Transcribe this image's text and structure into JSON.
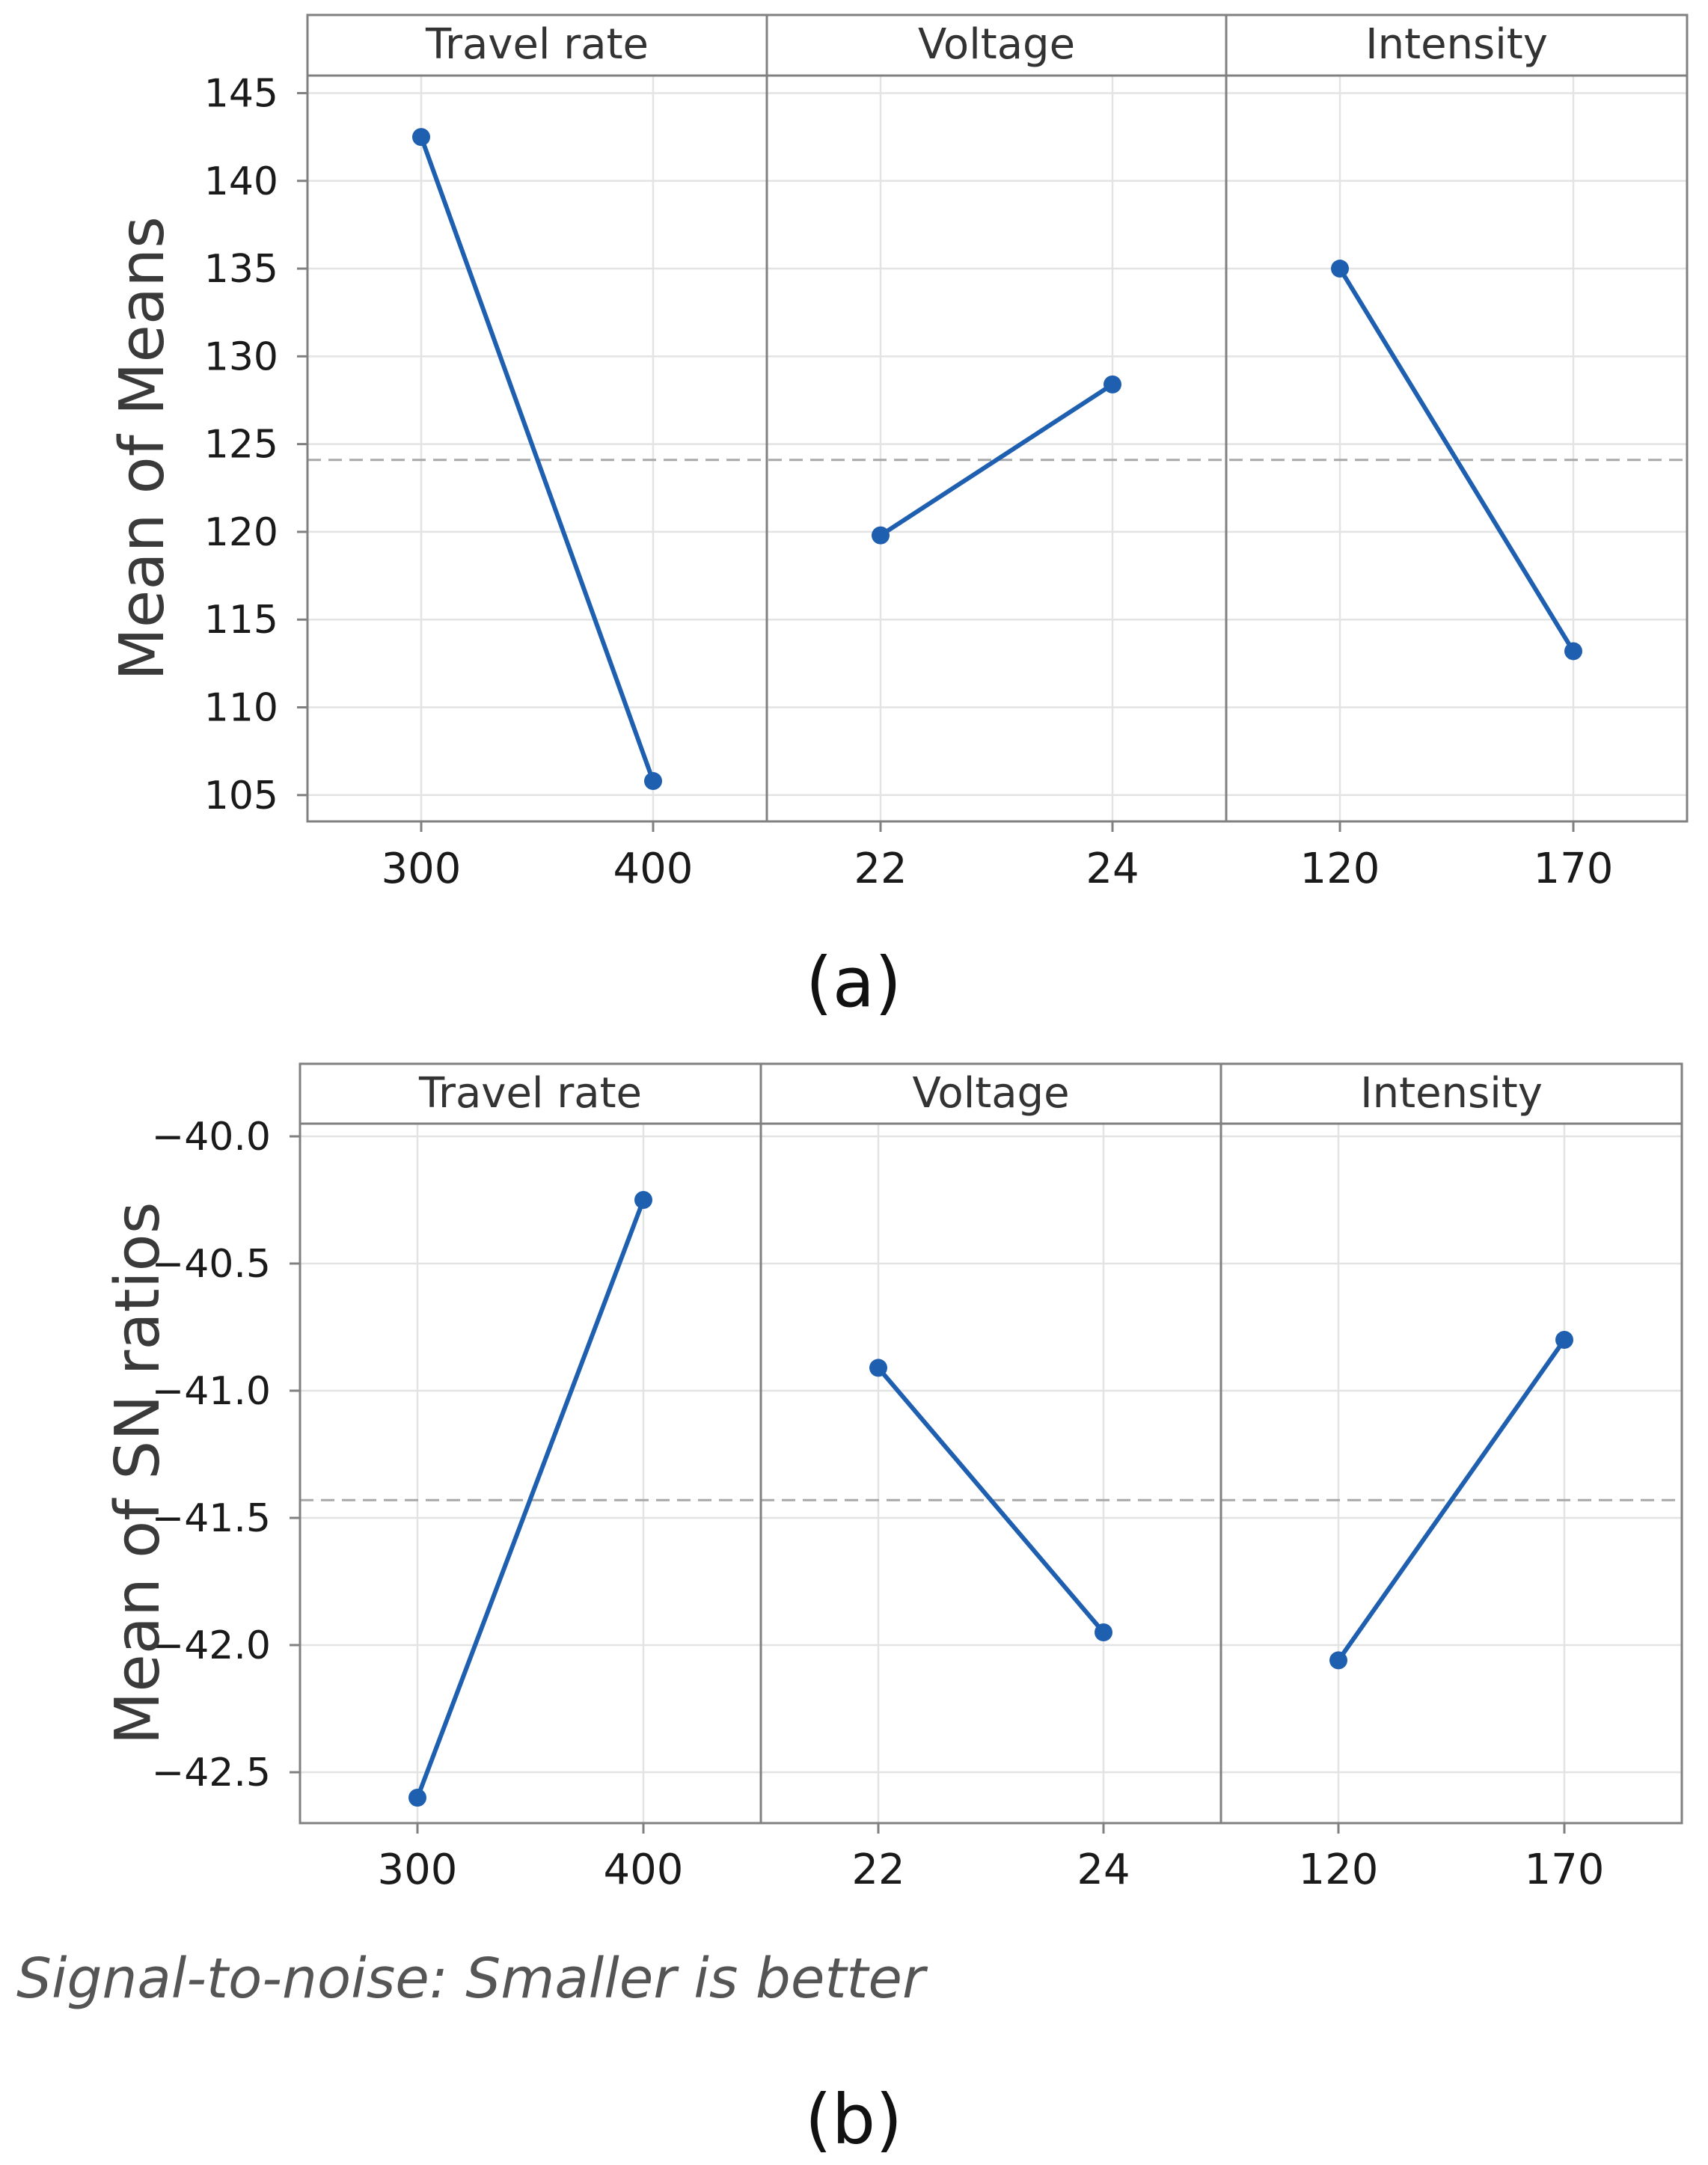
{
  "chart_data": [
    {
      "type": "line",
      "panel_label": "(a)",
      "ylabel": "Mean of Means",
      "ylim": [
        103.5,
        146
      ],
      "yticks": [
        105,
        110,
        115,
        120,
        125,
        130,
        135,
        140,
        145
      ],
      "ytick_labels": [
        "105",
        "110",
        "115",
        "120",
        "125",
        "130",
        "135",
        "140",
        "145"
      ],
      "reference_line": 124.1,
      "grid": true,
      "footnote": "",
      "panels": [
        {
          "title": "Travel rate",
          "categories": [
            "300",
            "400"
          ],
          "values": [
            142.5,
            105.8
          ]
        },
        {
          "title": "Voltage",
          "categories": [
            "22",
            "24"
          ],
          "values": [
            119.8,
            128.4
          ]
        },
        {
          "title": "Intensity",
          "categories": [
            "120",
            "170"
          ],
          "values": [
            135.0,
            113.2
          ]
        }
      ]
    },
    {
      "type": "line",
      "panel_label": "(b)",
      "ylabel": "Mean of SN ratios",
      "ylim": [
        -42.7,
        -39.95
      ],
      "yticks": [
        -42.5,
        -42.0,
        -41.5,
        -41.0,
        -40.5,
        -40.0
      ],
      "ytick_labels": [
        "−42.5",
        "−42.0",
        "−41.5",
        "−41.0",
        "−40.5",
        "−40.0"
      ],
      "reference_line": -41.43,
      "grid": true,
      "footnote": "Signal-to-noise: Smaller is better",
      "panels": [
        {
          "title": "Travel rate",
          "categories": [
            "300",
            "400"
          ],
          "values": [
            -42.6,
            -40.25
          ]
        },
        {
          "title": "Voltage",
          "categories": [
            "22",
            "24"
          ],
          "values": [
            -40.91,
            -41.95
          ]
        },
        {
          "title": "Intensity",
          "categories": [
            "120",
            "170"
          ],
          "values": [
            -42.06,
            -40.8
          ]
        }
      ]
    }
  ],
  "colors": {
    "series": "#1f5fb0",
    "grid": "#e3e3e3",
    "frame": "#808080",
    "reference": "#a8a8a8",
    "text": "#1a1a1a",
    "ylabel": "#3a3a3a",
    "footnote": "#555555"
  }
}
